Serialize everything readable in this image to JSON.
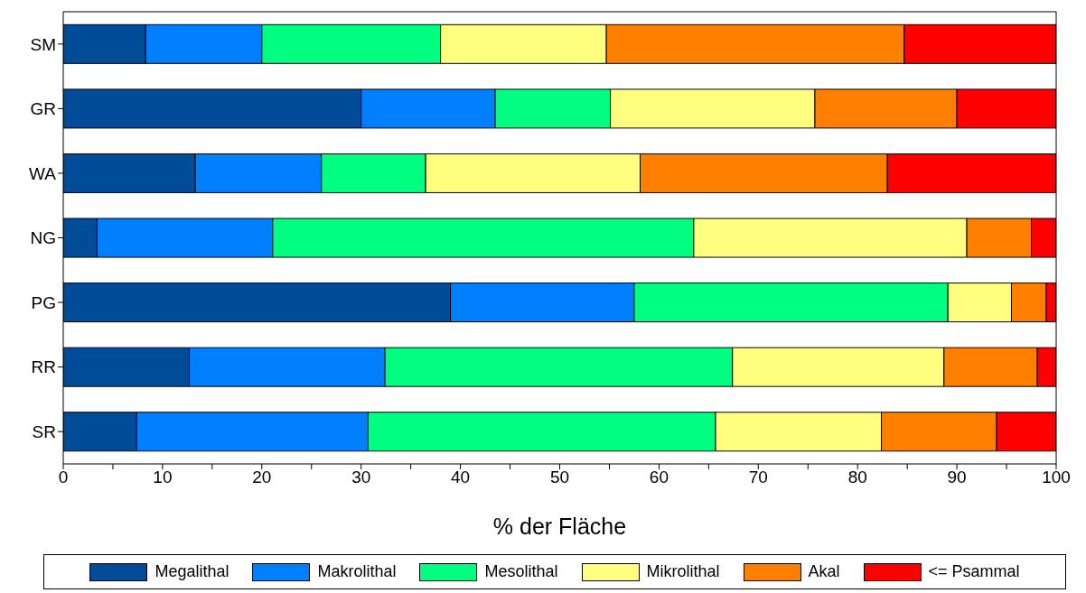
{
  "chart_data": {
    "type": "bar",
    "orientation": "horizontal",
    "stacked": true,
    "xlabel": "% der Fläche",
    "categories": [
      "SM",
      "GR",
      "WA",
      "NG",
      "PG",
      "RR",
      "SR"
    ],
    "series": [
      {
        "name": "Megalithal",
        "color": "#004c99",
        "values": [
          8.3,
          30,
          13.3,
          3.4,
          39,
          12.7,
          7.4
        ]
      },
      {
        "name": "Makrolithal",
        "color": "#0080ff",
        "values": [
          11.7,
          13.5,
          12.7,
          17.7,
          18.5,
          19.7,
          23.3
        ]
      },
      {
        "name": "Mesolithal",
        "color": "#00ff80",
        "values": [
          18,
          11.6,
          10.5,
          42.4,
          31.6,
          35,
          35
        ]
      },
      {
        "name": "Mikrolithal",
        "color": "#ffff80",
        "values": [
          16.7,
          20.6,
          21.6,
          27.5,
          6.4,
          21.3,
          16.7
        ]
      },
      {
        "name": "Akal",
        "color": "#ff8000",
        "values": [
          30,
          14.3,
          24.9,
          6.5,
          3.5,
          9.4,
          11.6
        ]
      },
      {
        "name": "<= Psammal",
        "color": "#ff0000",
        "values": [
          15.3,
          10,
          17,
          2.5,
          1,
          1.9,
          6
        ]
      }
    ],
    "xlim": [
      0,
      100
    ],
    "xticks": [
      0,
      {
        "value": 5,
        "label": null
      },
      10,
      {
        "value": 15,
        "label": null
      },
      20,
      {
        "value": 25,
        "label": null
      },
      30,
      {
        "value": 35,
        "label": null
      },
      40,
      {
        "value": 45,
        "label": null
      },
      50,
      {
        "value": 55,
        "label": null
      },
      60,
      {
        "value": 65,
        "label": null
      },
      70,
      {
        "value": 75,
        "label": null
      },
      80,
      {
        "value": 85,
        "label": null
      },
      90,
      {
        "value": 95,
        "label": null
      },
      100
    ],
    "legend": "bottom"
  }
}
